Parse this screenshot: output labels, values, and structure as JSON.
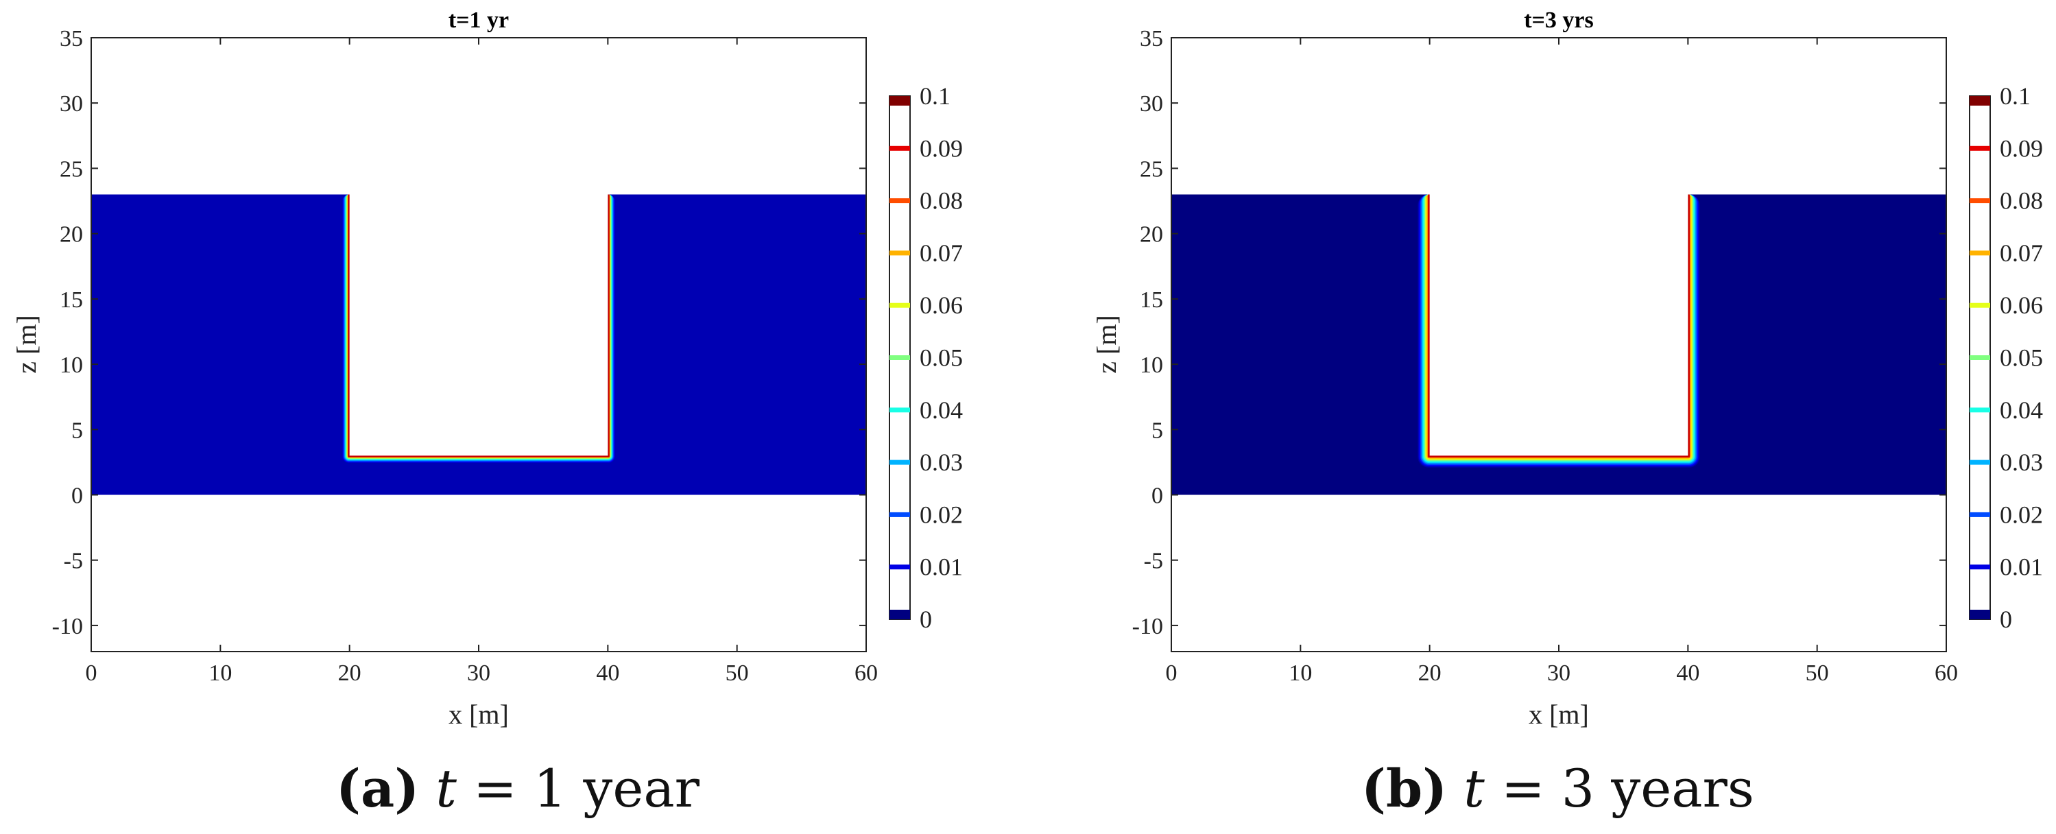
{
  "chart_data": [
    {
      "type": "heatmap",
      "panel": "a",
      "title": "t=1 yr",
      "xlabel": "x [m]",
      "ylabel": "z [m]",
      "xlim": [
        0,
        60
      ],
      "ylim": [
        -12,
        35
      ],
      "xticks": [
        0,
        10,
        20,
        30,
        40,
        50,
        60
      ],
      "yticks": [
        35,
        30,
        25,
        20,
        15,
        10,
        5,
        0,
        -5,
        -10
      ],
      "domain": {
        "x_range": [
          0,
          60
        ],
        "z_range": [
          0,
          23
        ]
      },
      "excavation": {
        "x_range": [
          20,
          40
        ],
        "z_bottom": 3,
        "z_top": 23
      },
      "front_width_m": 0.6,
      "background_value": 0.005,
      "boundary_value": 0.1,
      "colorbar": {
        "min": 0,
        "max": 0.1,
        "ticks": [
          "0.1",
          "0.09",
          "0.08",
          "0.07",
          "0.06",
          "0.05",
          "0.04",
          "0.03",
          "0.02",
          "0.01",
          "0"
        ]
      },
      "caption": {
        "letter": "(a)",
        "var": "t",
        "rest": "= 1 year"
      }
    },
    {
      "type": "heatmap",
      "panel": "b",
      "title": "t=3 yrs",
      "xlabel": "x [m]",
      "ylabel": "z [m]",
      "xlim": [
        0,
        60
      ],
      "ylim": [
        -12,
        35
      ],
      "xticks": [
        0,
        10,
        20,
        30,
        40,
        50,
        60
      ],
      "yticks": [
        35,
        30,
        25,
        20,
        15,
        10,
        5,
        0,
        -5,
        -10
      ],
      "domain": {
        "x_range": [
          0,
          60
        ],
        "z_range": [
          0,
          23
        ]
      },
      "excavation": {
        "x_range": [
          20,
          40
        ],
        "z_bottom": 3,
        "z_top": 23
      },
      "front_width_m": 1.0,
      "background_value": 0.0,
      "boundary_value": 0.1,
      "colorbar": {
        "min": 0,
        "max": 0.1,
        "ticks": [
          "0.1",
          "0.09",
          "0.08",
          "0.07",
          "0.06",
          "0.05",
          "0.04",
          "0.03",
          "0.02",
          "0.01",
          "0"
        ]
      },
      "caption": {
        "letter": "(b)",
        "var": "t",
        "rest": "= 3 years"
      }
    }
  ]
}
